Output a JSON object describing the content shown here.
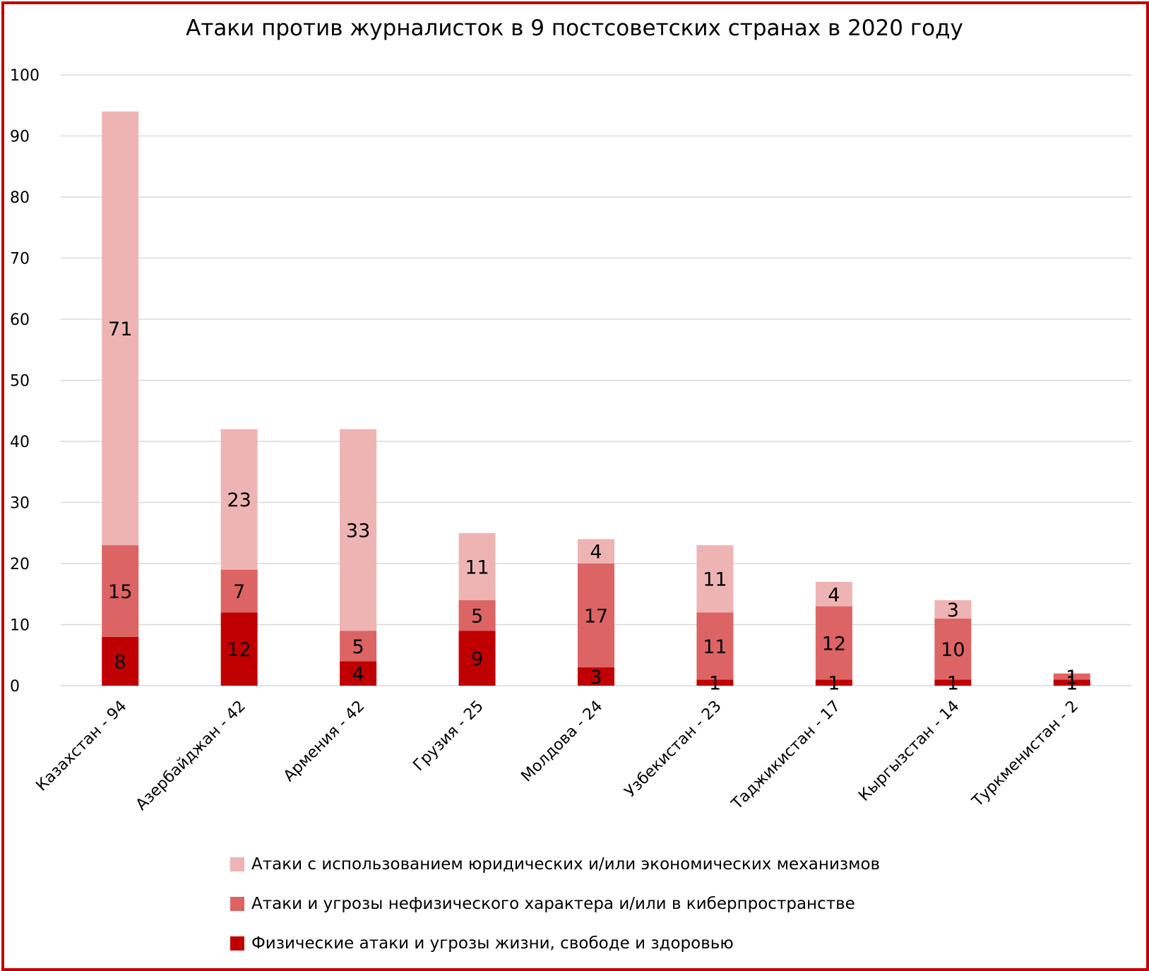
{
  "chart_data": {
    "type": "bar",
    "stacked": true,
    "title": "Атаки против журналисток в 9 постсоветских странах в 2020 году",
    "categories": [
      "Казахстан - 94",
      "Азербайджан - 42",
      "Армения - 42",
      "Грузия - 25",
      "Молдова - 24",
      "Узбекистан - 23",
      "Таджикистан - 17",
      "Кыргызстан - 14",
      "Туркменистан - 2"
    ],
    "series": [
      {
        "name": "Физические атаки и угрозы жизни, свободе и здоровью",
        "color": "#c00000",
        "values": [
          8,
          12,
          4,
          9,
          3,
          1,
          1,
          1,
          1
        ]
      },
      {
        "name": "Атаки и угрозы нефизического характера и/или в киберпространстве",
        "color": "#dc6464",
        "values": [
          15,
          7,
          5,
          5,
          17,
          11,
          12,
          10,
          1
        ]
      },
      {
        "name": "Атаки с использованием юридических и/или экономических механизмов",
        "color": "#eeb4b4",
        "values": [
          71,
          23,
          33,
          11,
          4,
          11,
          4,
          3,
          0
        ]
      }
    ],
    "ylim": [
      0,
      100
    ],
    "yticks": [
      0,
      10,
      20,
      30,
      40,
      50,
      60,
      70,
      80,
      90,
      100
    ],
    "grid": true,
    "legend_position": "bottom",
    "legend_order": [
      2,
      1,
      0
    ]
  }
}
